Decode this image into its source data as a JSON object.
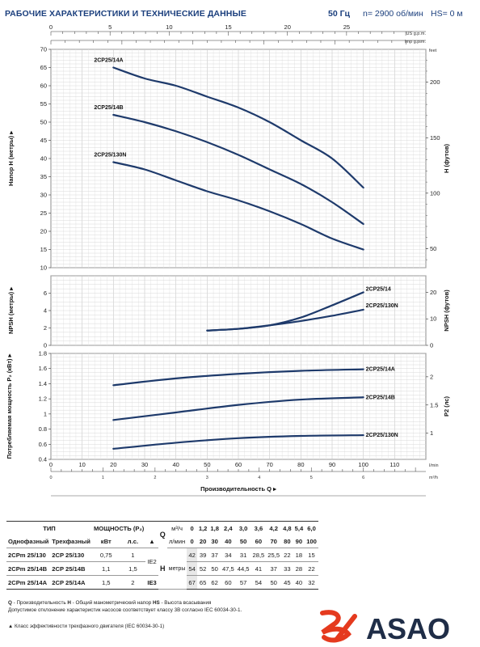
{
  "header": {
    "title": "РАБОЧИЕ ХАРАКТЕРИСТИКИ И ТЕХНИЧЕСКИЕ ДАННЫЕ",
    "freq": "50 Гц",
    "speed": "n= 2900 об/мин",
    "hs": "HS= 0 м"
  },
  "chart_data": [
    {
      "type": "line",
      "panel": "head",
      "ylabel": "Напор Н (метры)",
      "ylabel_right": "Н (футов)",
      "right_unit": "feet",
      "xlim": [
        0,
        120
      ],
      "ylim": [
        10,
        70
      ],
      "yticks": [
        10,
        15,
        20,
        25,
        30,
        35,
        40,
        45,
        50,
        55,
        60,
        65,
        70
      ],
      "yticks_right": [
        50,
        100,
        150,
        200
      ],
      "top_axis": {
        "unit_usgpm": "US g.p.m.",
        "unit_impgpm": "Imp g.p.m.",
        "ticks": [
          0,
          5,
          10,
          15,
          20,
          25
        ]
      },
      "series": [
        {
          "name": "2CP25/14A",
          "x": [
            20,
            30,
            40,
            50,
            60,
            70,
            80,
            90,
            100
          ],
          "y": [
            65,
            62,
            60,
            57,
            54,
            50,
            45,
            40,
            32
          ]
        },
        {
          "name": "2CP25/14B",
          "x": [
            20,
            30,
            40,
            50,
            60,
            70,
            80,
            90,
            100
          ],
          "y": [
            52,
            50,
            47.5,
            44.5,
            41,
            37,
            33,
            28,
            22
          ]
        },
        {
          "name": "2CP25/130N",
          "x": [
            20,
            30,
            40,
            50,
            60,
            70,
            80,
            90,
            100
          ],
          "y": [
            39,
            37,
            34,
            31,
            28.5,
            25.5,
            22,
            18,
            15
          ]
        }
      ]
    },
    {
      "type": "line",
      "panel": "npsh",
      "ylabel": "NPSH (метры)",
      "ylabel_right": "NPSH (футов)",
      "ylim": [
        0,
        8
      ],
      "yticks": [
        0,
        2,
        4,
        6
      ],
      "yticks_right": [
        0,
        10,
        20
      ],
      "series": [
        {
          "name": "2CP25/14",
          "x": [
            50,
            60,
            70,
            80,
            90,
            100
          ],
          "y": [
            1.7,
            1.9,
            2.3,
            3.2,
            4.6,
            6.1
          ]
        },
        {
          "name": "2CP25/130N",
          "x": [
            50,
            60,
            70,
            80,
            90,
            100
          ],
          "y": [
            1.7,
            1.9,
            2.3,
            2.8,
            3.4,
            4.1
          ]
        }
      ]
    },
    {
      "type": "line",
      "panel": "power",
      "ylabel": "Потребляемая мощность P₂ (кВт)",
      "ylabel_right": "P2 (лс)",
      "ylim": [
        0.4,
        1.8
      ],
      "yticks": [
        0.4,
        0.6,
        0.8,
        1,
        1.2,
        1.4,
        1.6,
        1.8
      ],
      "yticks_right": [
        1,
        1.5,
        2
      ],
      "xlabel": "Производительность Q",
      "x_unit": "l/min",
      "x_unit2": "m³/h",
      "xticks": [
        0,
        10,
        20,
        30,
        40,
        50,
        60,
        70,
        80,
        90,
        100,
        110
      ],
      "xticks_m3h": [
        0,
        1,
        2,
        3,
        4,
        5,
        6
      ],
      "series": [
        {
          "name": "2CP25/14A",
          "x": [
            20,
            40,
            60,
            80,
            100
          ],
          "y": [
            1.38,
            1.47,
            1.53,
            1.57,
            1.59
          ]
        },
        {
          "name": "2CP25/14B",
          "x": [
            20,
            40,
            60,
            80,
            100
          ],
          "y": [
            0.92,
            1.02,
            1.12,
            1.19,
            1.22
          ]
        },
        {
          "name": "2CP25/130N",
          "x": [
            20,
            40,
            60,
            80,
            100
          ],
          "y": [
            0.54,
            0.62,
            0.68,
            0.71,
            0.72
          ]
        }
      ]
    }
  ],
  "table": {
    "head": {
      "type": "ТИП",
      "power": "МОЩНОСТЬ (P₂)",
      "q": "Q",
      "mh": "м³/ч",
      "lmin": "л/мин",
      "single": "Однофазный",
      "three": "Трехфазный",
      "kw": "кВт",
      "hp": "л.с.",
      "tri": "▲",
      "h": "H",
      "meters": "метры"
    },
    "q_m3h": [
      "0",
      "1,2",
      "1,8",
      "2,4",
      "3,0",
      "3,6",
      "4,2",
      "4,8",
      "5,4",
      "6,0"
    ],
    "q_lmin": [
      "0",
      "20",
      "30",
      "40",
      "50",
      "60",
      "70",
      "80",
      "90",
      "100"
    ],
    "rows": [
      {
        "single": "2CPm 25/130",
        "three": "2CP 25/130",
        "kw": "0,75",
        "hp": "1",
        "ie": "IE2",
        "h": [
          "42",
          "39",
          "37",
          "34",
          "31",
          "28,5",
          "25,5",
          "22",
          "18",
          "15"
        ]
      },
      {
        "single": "2CPm 25/14B",
        "three": "2CP 25/14B",
        "kw": "1,1",
        "hp": "1,5",
        "ie": "",
        "h": [
          "54",
          "52",
          "50",
          "47,5",
          "44,5",
          "41",
          "37",
          "33",
          "28",
          "22"
        ]
      },
      {
        "single": "2CPm 25/14A",
        "three": "2CP 25/14A",
        "kw": "1,5",
        "hp": "2",
        "ie": "IE3",
        "h": [
          "67",
          "65",
          "62",
          "60",
          "57",
          "54",
          "50",
          "45",
          "40",
          "32"
        ]
      }
    ]
  },
  "notes": {
    "line1_q": "Q",
    "line1_qt": " - Производительность   ",
    "line1_h": "H",
    "line1_ht": " - Общий манометрический напор   ",
    "line1_hs": "HS",
    "line1_hst": " - Высота всасывания",
    "line2": "Допустимое отклонение характеристик насосов соответствует классу 3B согласно IEC 60034-30-1.",
    "line3": "▲  Класс эффективности трехфазного двигателя (IEC 60034-30-1)"
  },
  "logo": {
    "text": "ASAO",
    "color_red": "#e53a1e",
    "color_dark": "#1f2d47"
  },
  "colors": {
    "curve": "#1e3a6b",
    "grid": "#cfcfcf"
  }
}
